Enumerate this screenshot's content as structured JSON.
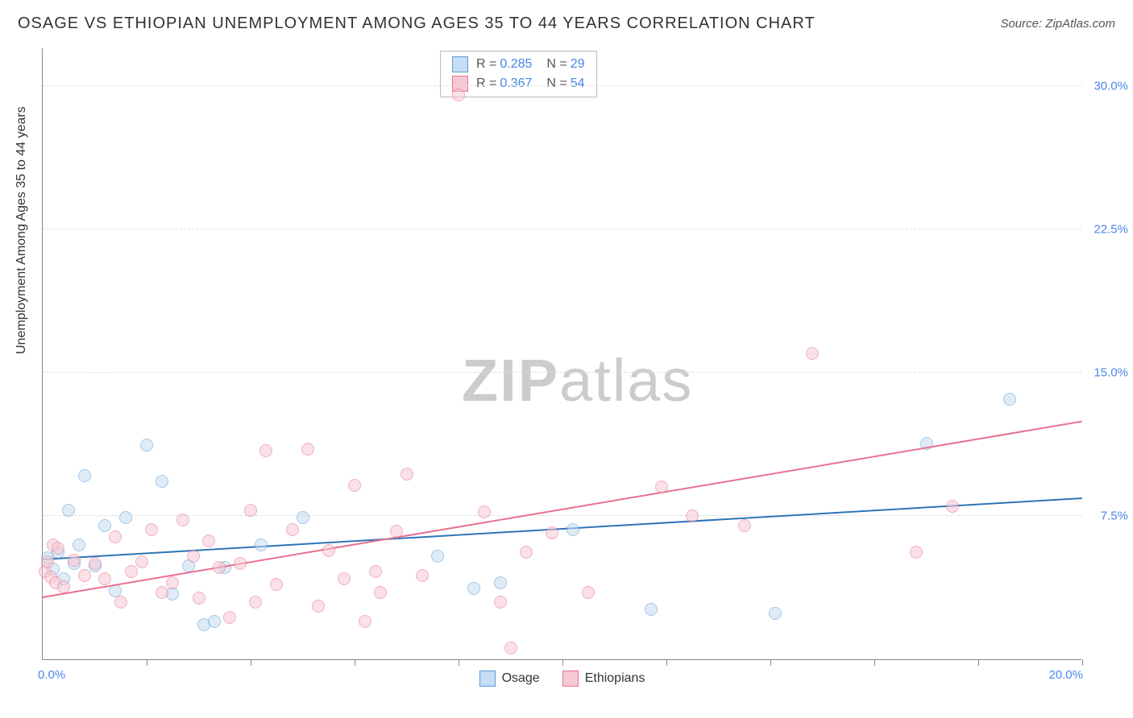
{
  "title": "OSAGE VS ETHIOPIAN UNEMPLOYMENT AMONG AGES 35 TO 44 YEARS CORRELATION CHART",
  "source": "Source: ZipAtlas.com",
  "watermark_bold": "ZIP",
  "watermark_light": "atlas",
  "yaxis_title": "Unemployment Among Ages 35 to 44 years",
  "chart": {
    "type": "scatter",
    "xlim": [
      0,
      20
    ],
    "ylim": [
      0,
      32
    ],
    "x_ticks": [
      2,
      4,
      6,
      8,
      10,
      12,
      14,
      16,
      18,
      20
    ],
    "x_label_min": "0.0%",
    "x_label_max": "20.0%",
    "y_gridlines": [
      {
        "value": 7.5,
        "label": "7.5%"
      },
      {
        "value": 15.0,
        "label": "15.0%"
      },
      {
        "value": 22.5,
        "label": "22.5%"
      },
      {
        "value": 30.0,
        "label": "30.0%"
      }
    ],
    "marker_radius": 8,
    "marker_border_width": 1,
    "background_color": "#ffffff",
    "grid_color": "#dddddd",
    "axis_color": "#888888",
    "tick_label_color": "#4a86e8"
  },
  "series": [
    {
      "name": "Osage",
      "fill_color": "#c6ddf3",
      "border_color": "#5b9bd5",
      "fill_opacity": 0.55,
      "R_label": "R =",
      "R": "0.285",
      "N_label": "N =",
      "N": "29",
      "trendline": {
        "x1": 0,
        "y1": 5.2,
        "x2": 20,
        "y2": 8.4,
        "color": "#2e75b6",
        "width": 2
      },
      "points": [
        [
          0.1,
          5.3
        ],
        [
          0.2,
          4.7
        ],
        [
          0.3,
          5.6
        ],
        [
          0.4,
          4.2
        ],
        [
          0.5,
          7.8
        ],
        [
          0.6,
          5.0
        ],
        [
          0.7,
          6.0
        ],
        [
          0.8,
          9.6
        ],
        [
          1.0,
          4.9
        ],
        [
          1.2,
          7.0
        ],
        [
          1.4,
          3.6
        ],
        [
          1.6,
          7.4
        ],
        [
          2.0,
          11.2
        ],
        [
          2.3,
          9.3
        ],
        [
          2.5,
          3.4
        ],
        [
          2.8,
          4.9
        ],
        [
          3.1,
          1.8
        ],
        [
          3.3,
          2.0
        ],
        [
          3.5,
          4.8
        ],
        [
          5.0,
          7.4
        ],
        [
          7.6,
          5.4
        ],
        [
          8.3,
          3.7
        ],
        [
          8.8,
          4.0
        ],
        [
          10.2,
          6.8
        ],
        [
          11.7,
          2.6
        ],
        [
          14.1,
          2.4
        ],
        [
          17.0,
          11.3
        ],
        [
          18.6,
          13.6
        ],
        [
          4.2,
          6.0
        ]
      ]
    },
    {
      "name": "Ethiopians",
      "fill_color": "#f6c8d4",
      "border_color": "#e7718d",
      "fill_opacity": 0.55,
      "R_label": "R =",
      "R": "0.367",
      "N_label": "N =",
      "N": "54",
      "trendline": {
        "x1": 0,
        "y1": 3.2,
        "x2": 20,
        "y2": 12.4,
        "color": "#e7718d",
        "width": 2
      },
      "points": [
        [
          0.05,
          4.6
        ],
        [
          0.1,
          5.1
        ],
        [
          0.15,
          4.3
        ],
        [
          0.2,
          6.0
        ],
        [
          0.25,
          4.0
        ],
        [
          0.3,
          5.8
        ],
        [
          0.4,
          3.8
        ],
        [
          0.6,
          5.2
        ],
        [
          0.8,
          4.4
        ],
        [
          1.0,
          5.0
        ],
        [
          1.2,
          4.2
        ],
        [
          1.4,
          6.4
        ],
        [
          1.5,
          3.0
        ],
        [
          1.7,
          4.6
        ],
        [
          1.9,
          5.1
        ],
        [
          2.1,
          6.8
        ],
        [
          2.3,
          3.5
        ],
        [
          2.5,
          4.0
        ],
        [
          2.7,
          7.3
        ],
        [
          2.9,
          5.4
        ],
        [
          3.0,
          3.2
        ],
        [
          3.2,
          6.2
        ],
        [
          3.4,
          4.8
        ],
        [
          3.6,
          2.2
        ],
        [
          3.8,
          5.0
        ],
        [
          4.0,
          7.8
        ],
        [
          4.3,
          10.9
        ],
        [
          4.5,
          3.9
        ],
        [
          4.8,
          6.8
        ],
        [
          5.1,
          11.0
        ],
        [
          5.3,
          2.8
        ],
        [
          5.5,
          5.7
        ],
        [
          5.8,
          4.2
        ],
        [
          6.0,
          9.1
        ],
        [
          6.2,
          2.0
        ],
        [
          6.5,
          3.5
        ],
        [
          6.8,
          6.7
        ],
        [
          7.0,
          9.7
        ],
        [
          7.3,
          4.4
        ],
        [
          8.0,
          29.5
        ],
        [
          8.5,
          7.7
        ],
        [
          8.8,
          3.0
        ],
        [
          9.3,
          5.6
        ],
        [
          9.0,
          0.6
        ],
        [
          9.8,
          6.6
        ],
        [
          10.5,
          3.5
        ],
        [
          11.9,
          9.0
        ],
        [
          12.5,
          7.5
        ],
        [
          13.5,
          7.0
        ],
        [
          14.8,
          16.0
        ],
        [
          16.8,
          5.6
        ],
        [
          17.5,
          8.0
        ],
        [
          6.4,
          4.6
        ],
        [
          4.1,
          3.0
        ]
      ]
    }
  ],
  "bottom_legend": [
    {
      "name": "Osage",
      "fill": "#c6ddf3",
      "border": "#5b9bd5"
    },
    {
      "name": "Ethiopians",
      "fill": "#f6c8d4",
      "border": "#e7718d"
    }
  ]
}
